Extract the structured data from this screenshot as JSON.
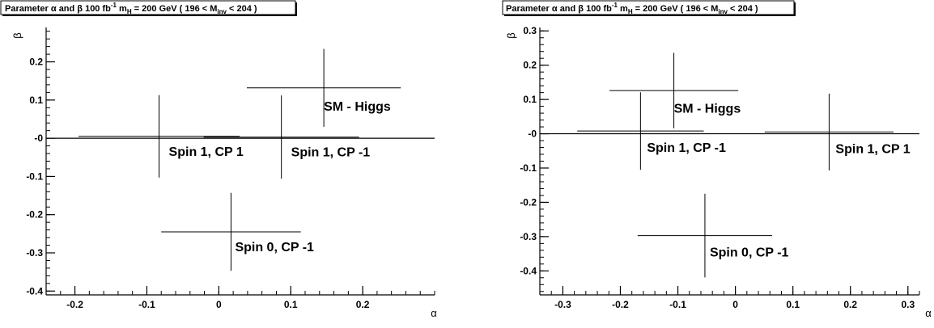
{
  "chart_data": [
    {
      "type": "scatter",
      "title": "Parameter α and β 100 fb⁻¹ m_H = 200 GeV ( 196 < M_inv < 204 )",
      "title_parts": {
        "prefix": "Parameter α and β 100 fb",
        "lumi_exp": "-1",
        "mass": " m",
        "mass_sub": "H",
        "mass_value": " = 200 GeV ( 196 < M",
        "minv_sub": "inv",
        "suffix": " < 204 )"
      },
      "xlabel": "α",
      "ylabel": "β",
      "xlim": [
        -0.24,
        0.3
      ],
      "ylim": [
        -0.41,
        0.29
      ],
      "xticks": [
        -0.2,
        -0.1,
        0,
        0.1,
        0.2
      ],
      "xtick_labels": [
        "-0.2",
        "-0.1",
        "0",
        "0.1",
        "0.2"
      ],
      "yticks": [
        -0.4,
        -0.3,
        -0.2,
        -0.1,
        0,
        0.1,
        0.2
      ],
      "ytick_labels": [
        "-0.4",
        "-0.3",
        "-0.2",
        "-0.1",
        "-0",
        "0.1",
        "0.2"
      ],
      "zero_line": true,
      "grid": false,
      "points": [
        {
          "label": "SM - Higgs",
          "x": 0.146,
          "y": 0.132,
          "x_err": 0.107,
          "y_err": 0.102
        },
        {
          "label": "Spin 1, CP 1",
          "x": -0.083,
          "y": 0.005,
          "x_err": 0.112,
          "y_err": 0.108
        },
        {
          "label": "Spin 1, CP -1",
          "x": 0.087,
          "y": 0.003,
          "x_err": 0.108,
          "y_err": 0.109
        },
        {
          "label": "Spin 0, CP -1",
          "x": 0.017,
          "y": -0.245,
          "x_err": 0.097,
          "y_err": 0.102
        }
      ]
    },
    {
      "type": "scatter",
      "title": "Parameter α and β 100 fb⁻¹ m_H = 200 GeV ( 196 < M_inv < 204 )",
      "title_parts": {
        "prefix": "Parameter α and β 100 fb",
        "lumi_exp": "-1",
        "mass": " m",
        "mass_sub": "H",
        "mass_value": " = 200 GeV ( 196 < M",
        "minv_sub": "inv",
        "suffix": " < 204 )"
      },
      "xlabel": "α",
      "ylabel": "β",
      "xlim": [
        -0.34,
        0.32
      ],
      "ylim": [
        -0.47,
        0.31
      ],
      "xticks": [
        -0.3,
        -0.2,
        -0.1,
        0,
        0.1,
        0.2,
        0.3
      ],
      "xtick_labels": [
        "-0.3",
        "-0.2",
        "-0.1",
        "0",
        "0.1",
        "0.2",
        "0.3"
      ],
      "yticks": [
        -0.4,
        -0.3,
        -0.2,
        -0.1,
        0,
        0.1,
        0.2,
        0.3
      ],
      "ytick_labels": [
        "-0.4",
        "-0.3",
        "-0.2",
        "-0.1",
        "-0",
        "0.1",
        "0.2",
        "0.3"
      ],
      "zero_line": true,
      "grid": false,
      "points": [
        {
          "label": "SM - Higgs",
          "x": -0.107,
          "y": 0.126,
          "x_err": 0.112,
          "y_err": 0.11
        },
        {
          "label": "Spin 1, CP -1",
          "x": -0.165,
          "y": 0.008,
          "x_err": 0.11,
          "y_err": 0.113
        },
        {
          "label": "Spin 1, CP 1",
          "x": 0.163,
          "y": 0.005,
          "x_err": 0.112,
          "y_err": 0.112
        },
        {
          "label": "Spin 0, CP -1",
          "x": -0.053,
          "y": -0.297,
          "x_err": 0.117,
          "y_err": 0.122
        }
      ]
    }
  ]
}
